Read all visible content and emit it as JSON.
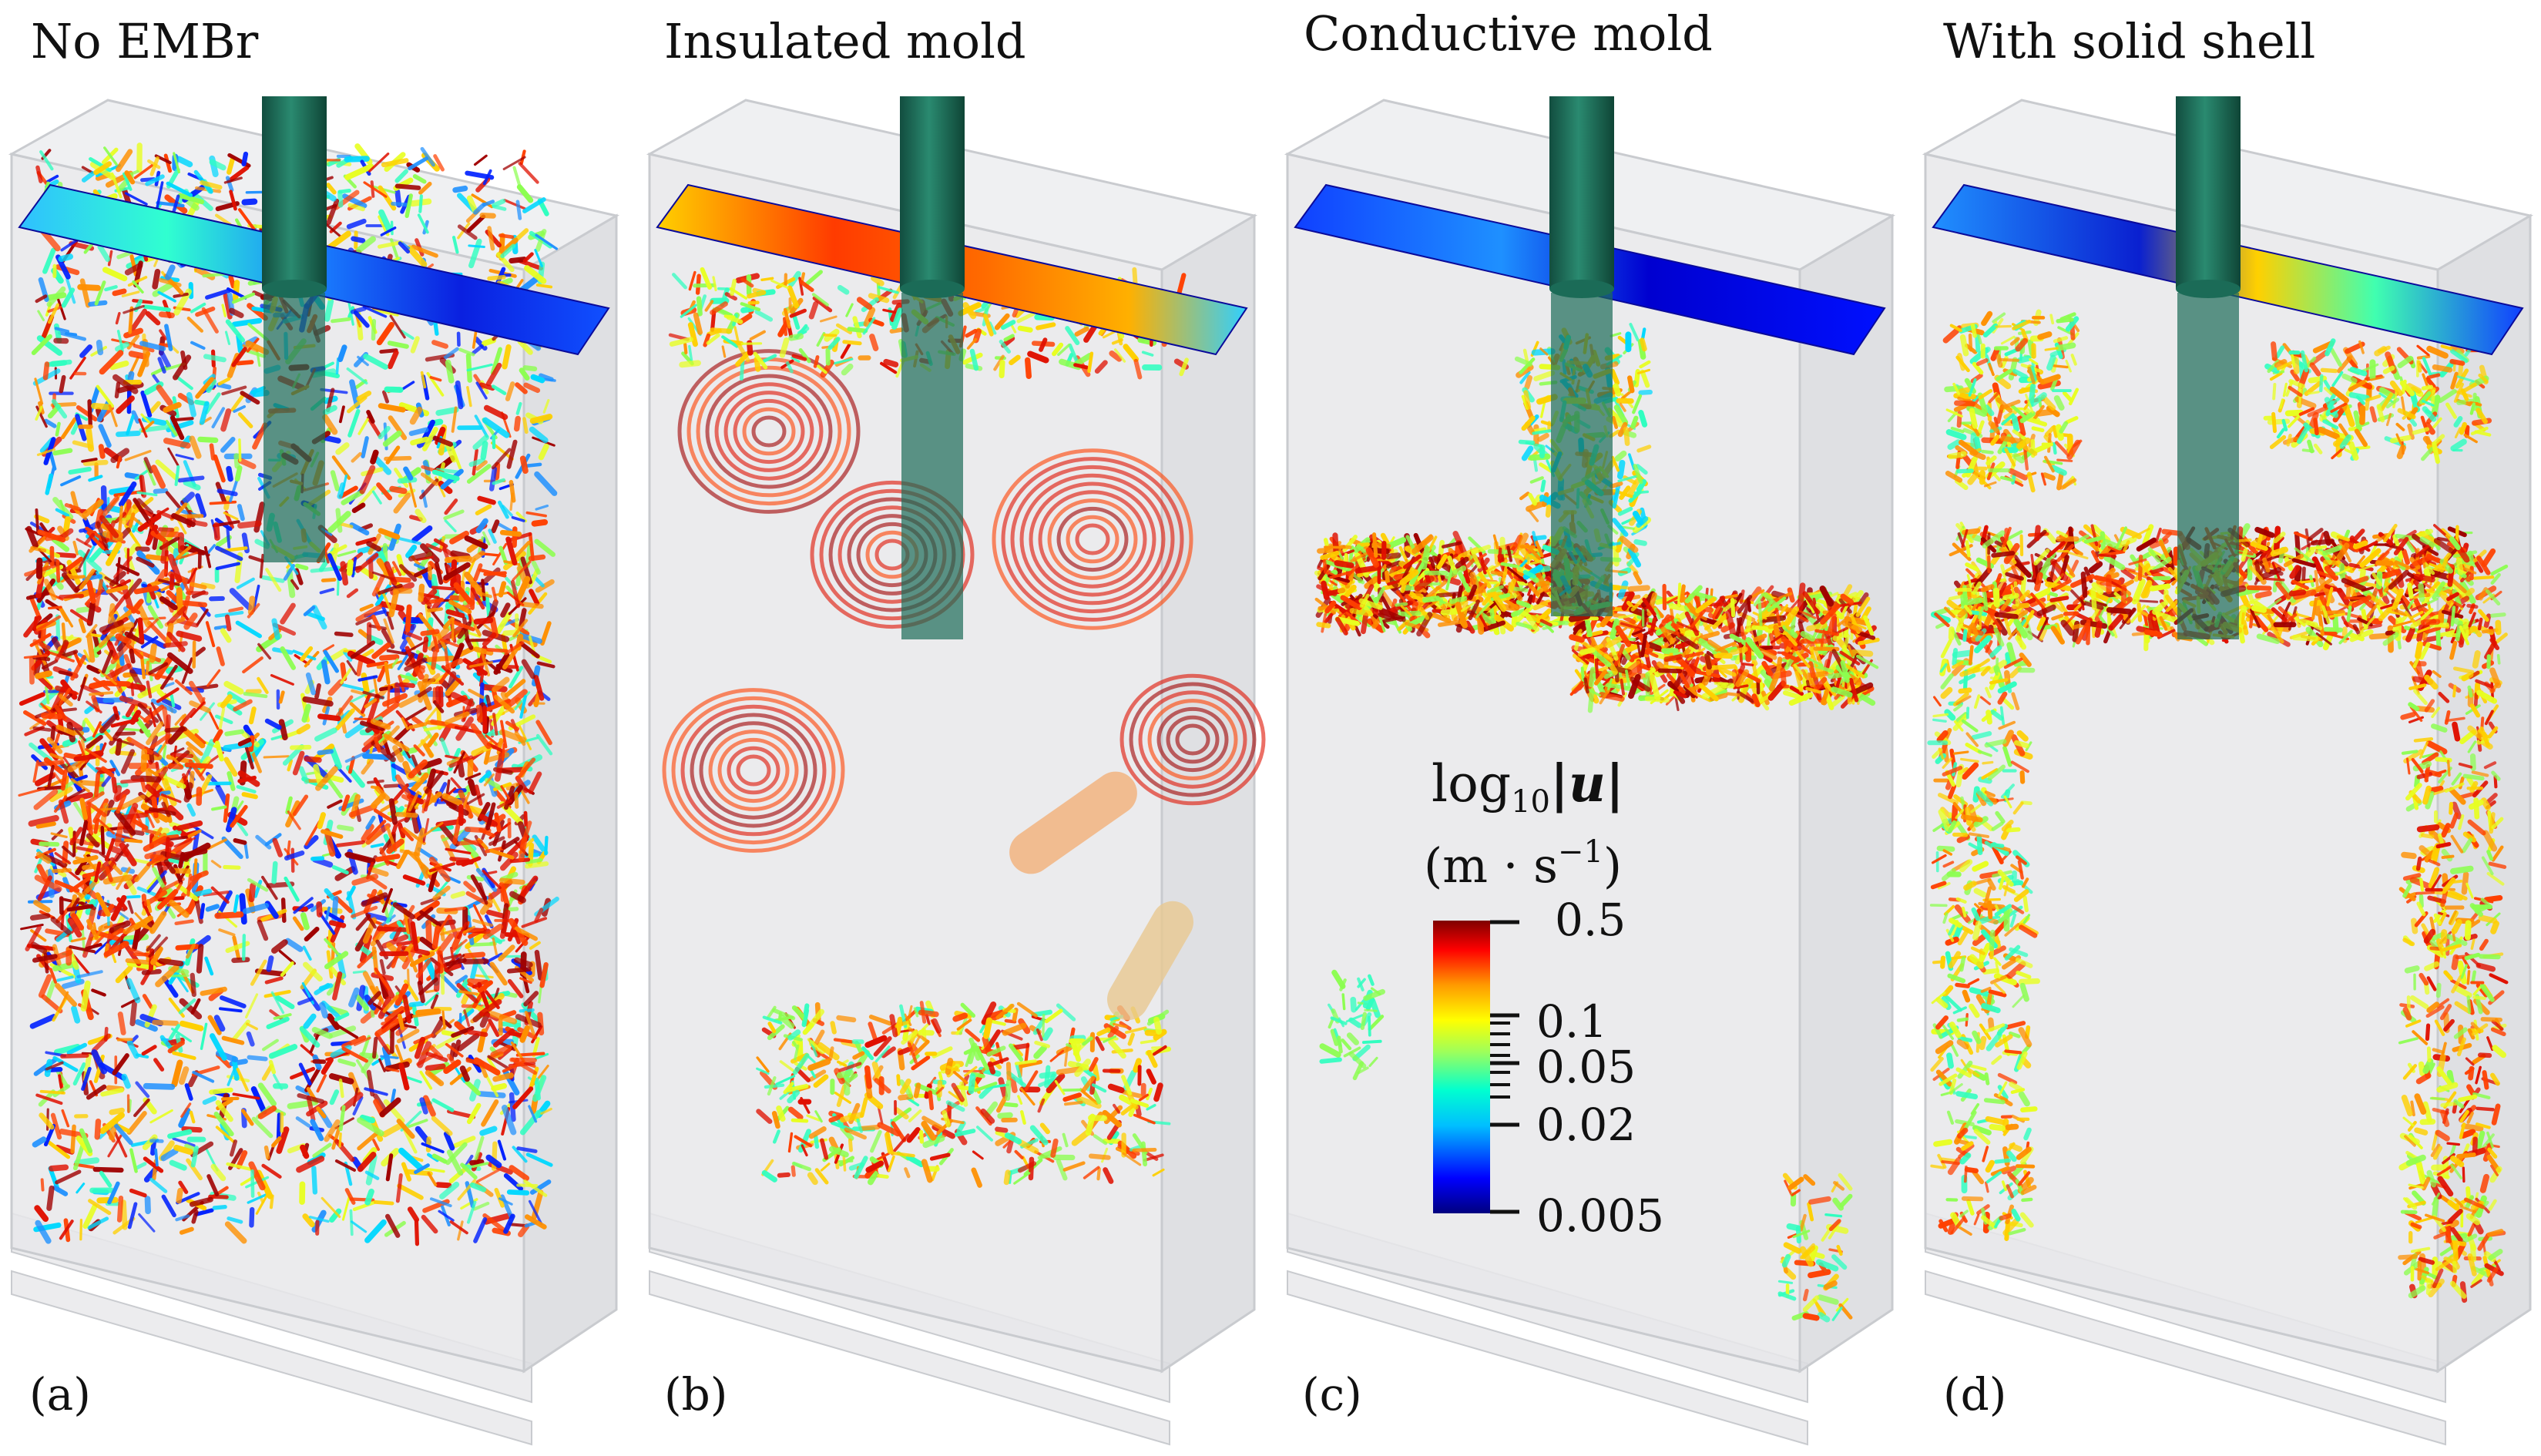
{
  "panels": [
    {
      "title": "No EMBr",
      "tag": "(a)",
      "mode": "dense"
    },
    {
      "title": "Insulated mold",
      "tag": "(b)",
      "mode": "vortices"
    },
    {
      "title": "Conductive mold",
      "tag": "(c)",
      "mode": "jets"
    },
    {
      "title": "With solid shell",
      "tag": "(d)",
      "mode": "shell"
    }
  ],
  "colorbar": {
    "title_main": "log",
    "title_sub": "10",
    "title_var": "|u|",
    "units": "(m · s",
    "units_exp": "−1",
    "units_close": ")",
    "ticks": [
      "0.5",
      "0.1",
      "0.05",
      "0.02",
      "0.005"
    ],
    "colormap": [
      "#00007f",
      "#0000ff",
      "#00bfff",
      "#00ffd0",
      "#7fff7f",
      "#ffff00",
      "#ff7f00",
      "#ff0000",
      "#7f0000"
    ]
  },
  "colors": {
    "nozzle": "#1b6b57",
    "mold_fill": "#e7e8ea",
    "mold_edge": "#c9cbcf"
  }
}
